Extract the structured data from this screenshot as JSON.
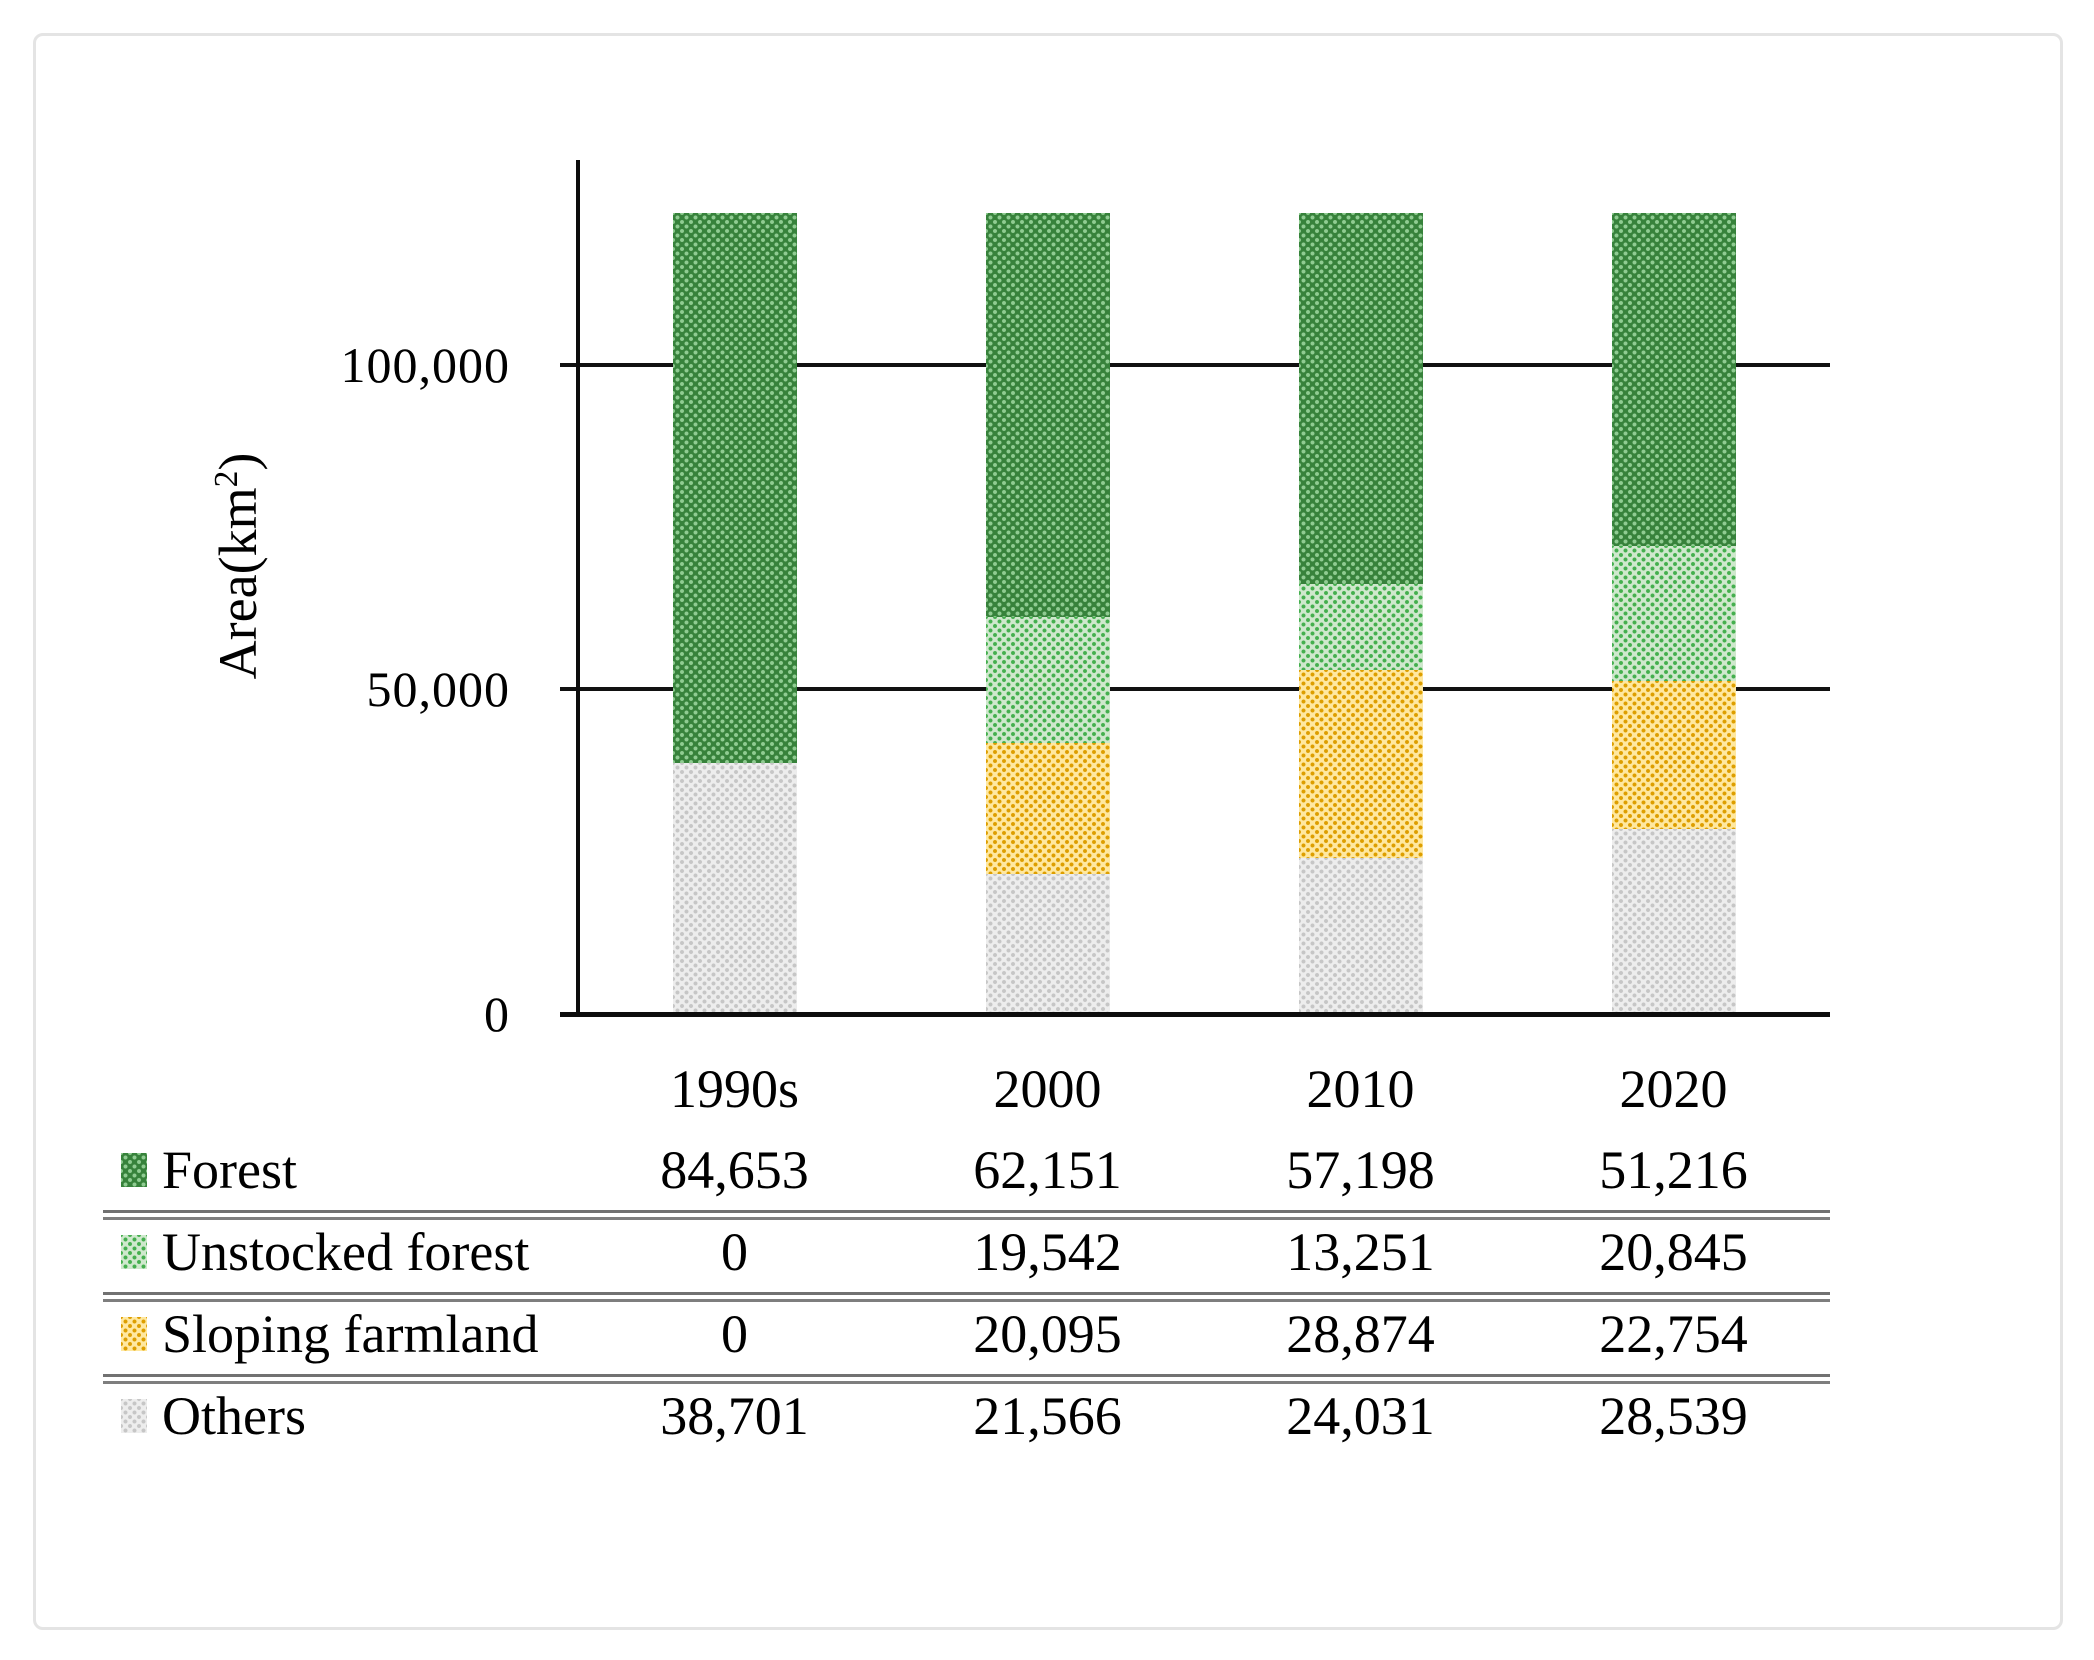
{
  "chart_data": {
    "type": "bar",
    "stacked": true,
    "orientation": "vertical",
    "ylabel_prefix": "Area(km",
    "ylabel_sup": "2",
    "ylabel_suffix": ")",
    "categories": [
      "1990s",
      "2000",
      "2010",
      "2020"
    ],
    "series": [
      {
        "name": "Forest",
        "values": [
          84653,
          62151,
          57198,
          51216
        ],
        "value_labels": [
          "84,653",
          "62,151",
          "57,198",
          "51,216"
        ],
        "base_color": "#37823B",
        "dot_color": "#90CC92"
      },
      {
        "name": "Unstocked forest",
        "values": [
          0,
          19542,
          13251,
          20845
        ],
        "value_labels": [
          "0",
          "19,542",
          "13,251",
          "20,845"
        ],
        "base_color": "#CFE8CD",
        "dot_color": "#44AF4E"
      },
      {
        "name": "Sloping farmland",
        "values": [
          0,
          20095,
          28874,
          22754
        ],
        "value_labels": [
          "0",
          "20,095",
          "28,874",
          "22,754"
        ],
        "base_color": "#FFE8A0",
        "dot_color": "#DD9E00"
      },
      {
        "name": "Others",
        "values": [
          38701,
          21566,
          24031,
          28539
        ],
        "value_labels": [
          "38,701",
          "21,566",
          "24,031",
          "28,539"
        ],
        "base_color": "#EDEDED",
        "dot_color": "#C6C6C6"
      }
    ],
    "y_ticks": [
      {
        "value": 0,
        "label": "0"
      },
      {
        "value": 50000,
        "label": "50,000"
      },
      {
        "value": 100000,
        "label": "100,000"
      }
    ],
    "stack_total": 123354,
    "grid": true,
    "gridlines_behind_bars": true,
    "legend_position": "bottom-table"
  },
  "colors": {
    "axis": "#0d0d0d",
    "gridline": "#111111",
    "divider_line": "#767676",
    "frame_border": "#e4e4e4",
    "background": "#ffffff"
  }
}
